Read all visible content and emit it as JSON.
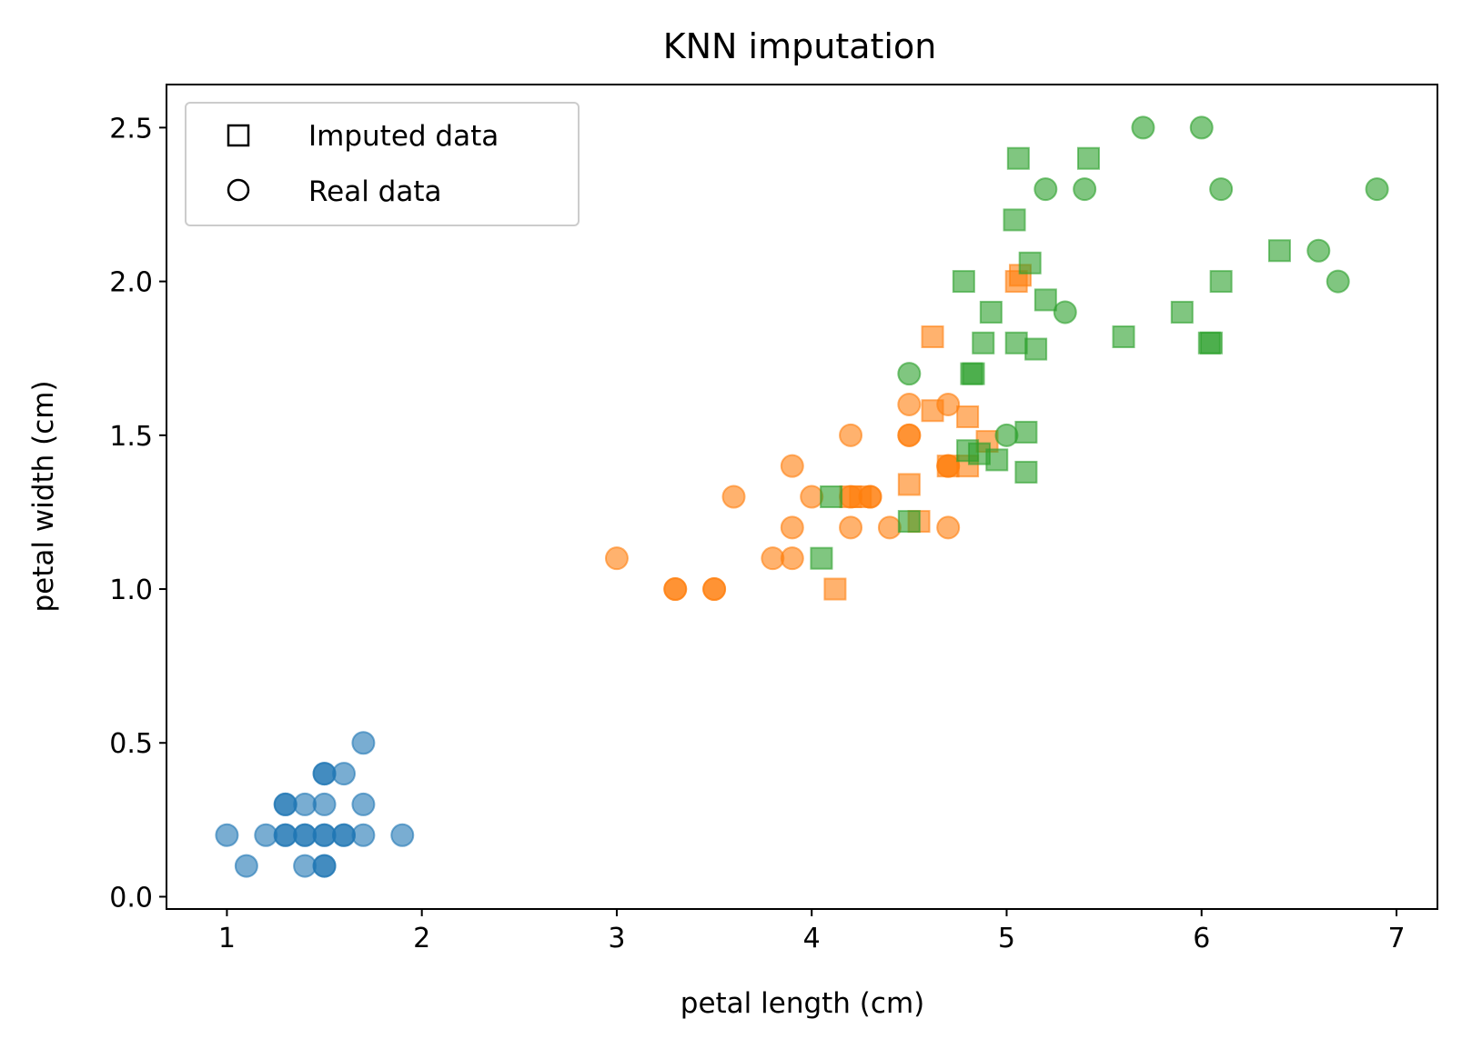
{
  "chart_data": {
    "type": "scatter",
    "title": "KNN imputation",
    "xlabel": "petal length (cm)",
    "ylabel": "petal width (cm)",
    "xlim": [
      0.69,
      7.21
    ],
    "ylim": [
      -0.04,
      2.64
    ],
    "xticks": [
      1,
      2,
      3,
      4,
      5,
      6,
      7
    ],
    "xtick_labels": [
      "1",
      "2",
      "3",
      "4",
      "5",
      "6",
      "7"
    ],
    "yticks": [
      0.0,
      0.5,
      1.0,
      1.5,
      2.0,
      2.5
    ],
    "ytick_labels": [
      "0.0",
      "0.5",
      "1.0",
      "1.5",
      "2.0",
      "2.5"
    ],
    "grid": false,
    "legend": {
      "placement": "top-left",
      "entries": [
        {
          "label": "Imputed data",
          "marker": "square"
        },
        {
          "label": "Real data",
          "marker": "circle"
        }
      ]
    },
    "series": [
      {
        "color": "#1f77b4",
        "marker": "circle",
        "points": [
          [
            1.0,
            0.2
          ],
          [
            1.1,
            0.1
          ],
          [
            1.2,
            0.2
          ],
          [
            1.3,
            0.2
          ],
          [
            1.3,
            0.2
          ],
          [
            1.3,
            0.3
          ],
          [
            1.3,
            0.3
          ],
          [
            1.4,
            0.2
          ],
          [
            1.4,
            0.2
          ],
          [
            1.4,
            0.3
          ],
          [
            1.4,
            0.1
          ],
          [
            1.5,
            0.2
          ],
          [
            1.5,
            0.2
          ],
          [
            1.5,
            0.3
          ],
          [
            1.5,
            0.4
          ],
          [
            1.5,
            0.4
          ],
          [
            1.5,
            0.1
          ],
          [
            1.5,
            0.1
          ],
          [
            1.6,
            0.2
          ],
          [
            1.6,
            0.2
          ],
          [
            1.6,
            0.4
          ],
          [
            1.7,
            0.2
          ],
          [
            1.7,
            0.3
          ],
          [
            1.7,
            0.5
          ],
          [
            1.9,
            0.2
          ]
        ]
      },
      {
        "color": "#ff7f0e",
        "marker": "circle",
        "points": [
          [
            3.0,
            1.1
          ],
          [
            3.3,
            1.0
          ],
          [
            3.3,
            1.0
          ],
          [
            3.5,
            1.0
          ],
          [
            3.5,
            1.0
          ],
          [
            3.6,
            1.3
          ],
          [
            3.8,
            1.1
          ],
          [
            3.9,
            1.4
          ],
          [
            3.9,
            1.2
          ],
          [
            3.9,
            1.1
          ],
          [
            4.0,
            1.3
          ],
          [
            4.2,
            1.5
          ],
          [
            4.2,
            1.3
          ],
          [
            4.2,
            1.2
          ],
          [
            4.3,
            1.3
          ],
          [
            4.3,
            1.3
          ],
          [
            4.4,
            1.2
          ],
          [
            4.5,
            1.6
          ],
          [
            4.5,
            1.5
          ],
          [
            4.5,
            1.5
          ],
          [
            4.7,
            1.6
          ],
          [
            4.7,
            1.4
          ],
          [
            4.7,
            1.4
          ],
          [
            4.7,
            1.2
          ]
        ]
      },
      {
        "color": "#ff7f0e",
        "marker": "square",
        "points": [
          [
            4.12,
            1.0
          ],
          [
            4.2,
            1.3
          ],
          [
            4.25,
            1.3
          ],
          [
            4.5,
            1.34
          ],
          [
            4.55,
            1.22
          ],
          [
            4.62,
            1.82
          ],
          [
            4.62,
            1.58
          ],
          [
            4.7,
            1.4
          ],
          [
            4.8,
            1.56
          ],
          [
            4.8,
            1.4
          ],
          [
            4.9,
            1.48
          ],
          [
            5.05,
            2.0
          ],
          [
            5.07,
            2.02
          ]
        ]
      },
      {
        "color": "#2ca02c",
        "marker": "circle",
        "points": [
          [
            4.5,
            1.7
          ],
          [
            5.0,
            1.5
          ],
          [
            5.2,
            2.3
          ],
          [
            5.3,
            1.9
          ],
          [
            5.4,
            2.3
          ],
          [
            5.7,
            2.5
          ],
          [
            6.0,
            2.5
          ],
          [
            6.1,
            2.3
          ],
          [
            6.6,
            2.1
          ],
          [
            6.7,
            2.0
          ],
          [
            6.9,
            2.3
          ]
        ]
      },
      {
        "color": "#2ca02c",
        "marker": "square",
        "points": [
          [
            4.05,
            1.1
          ],
          [
            4.1,
            1.3
          ],
          [
            4.5,
            1.22
          ],
          [
            4.78,
            2.0
          ],
          [
            4.8,
            1.45
          ],
          [
            4.82,
            1.7
          ],
          [
            4.83,
            1.7
          ],
          [
            4.86,
            1.44
          ],
          [
            4.88,
            1.8
          ],
          [
            4.92,
            1.9
          ],
          [
            4.95,
            1.42
          ],
          [
            5.04,
            2.2
          ],
          [
            5.05,
            1.8
          ],
          [
            5.06,
            2.4
          ],
          [
            5.1,
            1.51
          ],
          [
            5.1,
            1.38
          ],
          [
            5.12,
            2.06
          ],
          [
            5.15,
            1.78
          ],
          [
            5.2,
            1.94
          ],
          [
            5.42,
            2.4
          ],
          [
            5.6,
            1.82
          ],
          [
            5.9,
            1.9
          ],
          [
            6.04,
            1.8
          ],
          [
            6.05,
            1.8
          ],
          [
            6.1,
            2.0
          ],
          [
            6.4,
            2.1
          ]
        ]
      }
    ]
  }
}
